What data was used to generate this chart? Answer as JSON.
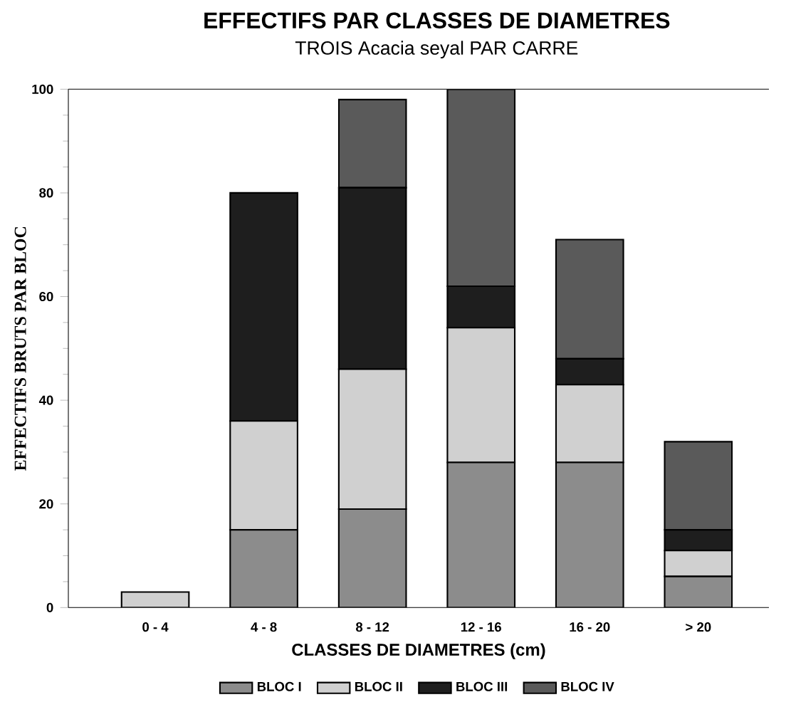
{
  "chart_data": {
    "type": "bar",
    "stacked": true,
    "title": "EFFECTIFS PAR CLASSES DE DIAMETRES",
    "subtitle": "TROIS Acacia seyal PAR CARRE",
    "xlabel": "CLASSES DE DIAMETRES (cm)",
    "ylabel": "EFFECTIFS BRUTS PAR BLOC",
    "categories": [
      "0 - 4",
      "4 - 8",
      "8 - 12",
      "12 - 16",
      "16 - 20",
      "> 20"
    ],
    "series": [
      {
        "name": "BLOC I",
        "color": "#8c8c8c",
        "values": [
          0,
          15,
          19,
          28,
          28,
          6
        ]
      },
      {
        "name": "BLOC II",
        "color": "#d0d0d0",
        "values": [
          3,
          21,
          27,
          26,
          15,
          5
        ]
      },
      {
        "name": "BLOC III",
        "color": "#1e1e1e",
        "values": [
          0,
          44,
          35,
          8,
          5,
          4
        ]
      },
      {
        "name": "BLOC IV",
        "color": "#5a5a5a",
        "values": [
          0,
          0,
          17,
          38,
          23,
          17
        ]
      }
    ],
    "ylim": [
      0,
      100
    ],
    "yticks": [
      0,
      20,
      40,
      60,
      80,
      100
    ],
    "legend": "bottom",
    "grid": false
  }
}
